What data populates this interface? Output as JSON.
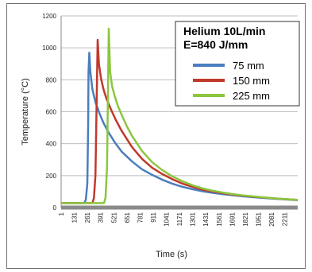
{
  "chart_data": {
    "type": "line",
    "xlabel": "Time (s)",
    "ylabel": "Temperature (°C)",
    "ylim": [
      0,
      1200
    ],
    "yticks": [
      0,
      200,
      400,
      600,
      800,
      1000,
      1200
    ],
    "xlim": [
      1,
      2340
    ],
    "xticks": [
      1,
      131,
      261,
      391,
      521,
      651,
      781,
      911,
      1041,
      1171,
      1301,
      1431,
      1561,
      1691,
      1821,
      1951,
      2081,
      2211
    ],
    "grid": "horizontal",
    "legend": {
      "title_lines": [
        "Helium 10L/min",
        "E=840 J/mm"
      ],
      "position": "top-right"
    },
    "series": [
      {
        "name": "75 mm",
        "color": "#4a7ebf",
        "x": [
          1,
          150,
          230,
          245,
          260,
          268,
          272,
          280,
          290,
          310,
          340,
          380,
          420,
          470,
          530,
          600,
          700,
          800,
          900,
          1000,
          1100,
          1200,
          1300,
          1400,
          1500,
          1600,
          1700,
          1800,
          1900,
          2000,
          2100,
          2200,
          2300,
          2340
        ],
        "y": [
          28,
          28,
          28,
          50,
          150,
          500,
          850,
          970,
          850,
          740,
          660,
          590,
          530,
          470,
          410,
          350,
          290,
          240,
          205,
          175,
          150,
          130,
          115,
          102,
          92,
          84,
          77,
          70,
          65,
          60,
          56,
          52,
          48,
          46
        ]
      },
      {
        "name": "150 mm",
        "color": "#c0392b",
        "x": [
          1,
          250,
          310,
          325,
          340,
          352,
          362,
          375,
          395,
          420,
          450,
          490,
          540,
          600,
          700,
          800,
          900,
          1000,
          1100,
          1200,
          1300,
          1400,
          1500,
          1600,
          1700,
          1800,
          1900,
          2000,
          2100,
          2200,
          2300,
          2340
        ],
        "y": [
          28,
          28,
          28,
          60,
          200,
          650,
          1050,
          900,
          810,
          740,
          680,
          620,
          550,
          480,
          380,
          305,
          250,
          210,
          178,
          150,
          130,
          112,
          100,
          90,
          81,
          74,
          68,
          63,
          58,
          54,
          50,
          48
        ]
      },
      {
        "name": "225 mm",
        "color": "#8cc63f",
        "x": [
          1,
          370,
          425,
          440,
          455,
          465,
          472,
          485,
          505,
          530,
          560,
          600,
          650,
          700,
          800,
          900,
          1000,
          1100,
          1200,
          1300,
          1400,
          1500,
          1600,
          1700,
          1800,
          1900,
          2000,
          2100,
          2200,
          2300,
          2340
        ],
        "y": [
          28,
          28,
          28,
          60,
          250,
          750,
          1120,
          850,
          760,
          700,
          640,
          580,
          510,
          450,
          355,
          285,
          235,
          195,
          165,
          140,
          120,
          105,
          94,
          84,
          76,
          70,
          64,
          59,
          54,
          50,
          48
        ]
      }
    ]
  }
}
